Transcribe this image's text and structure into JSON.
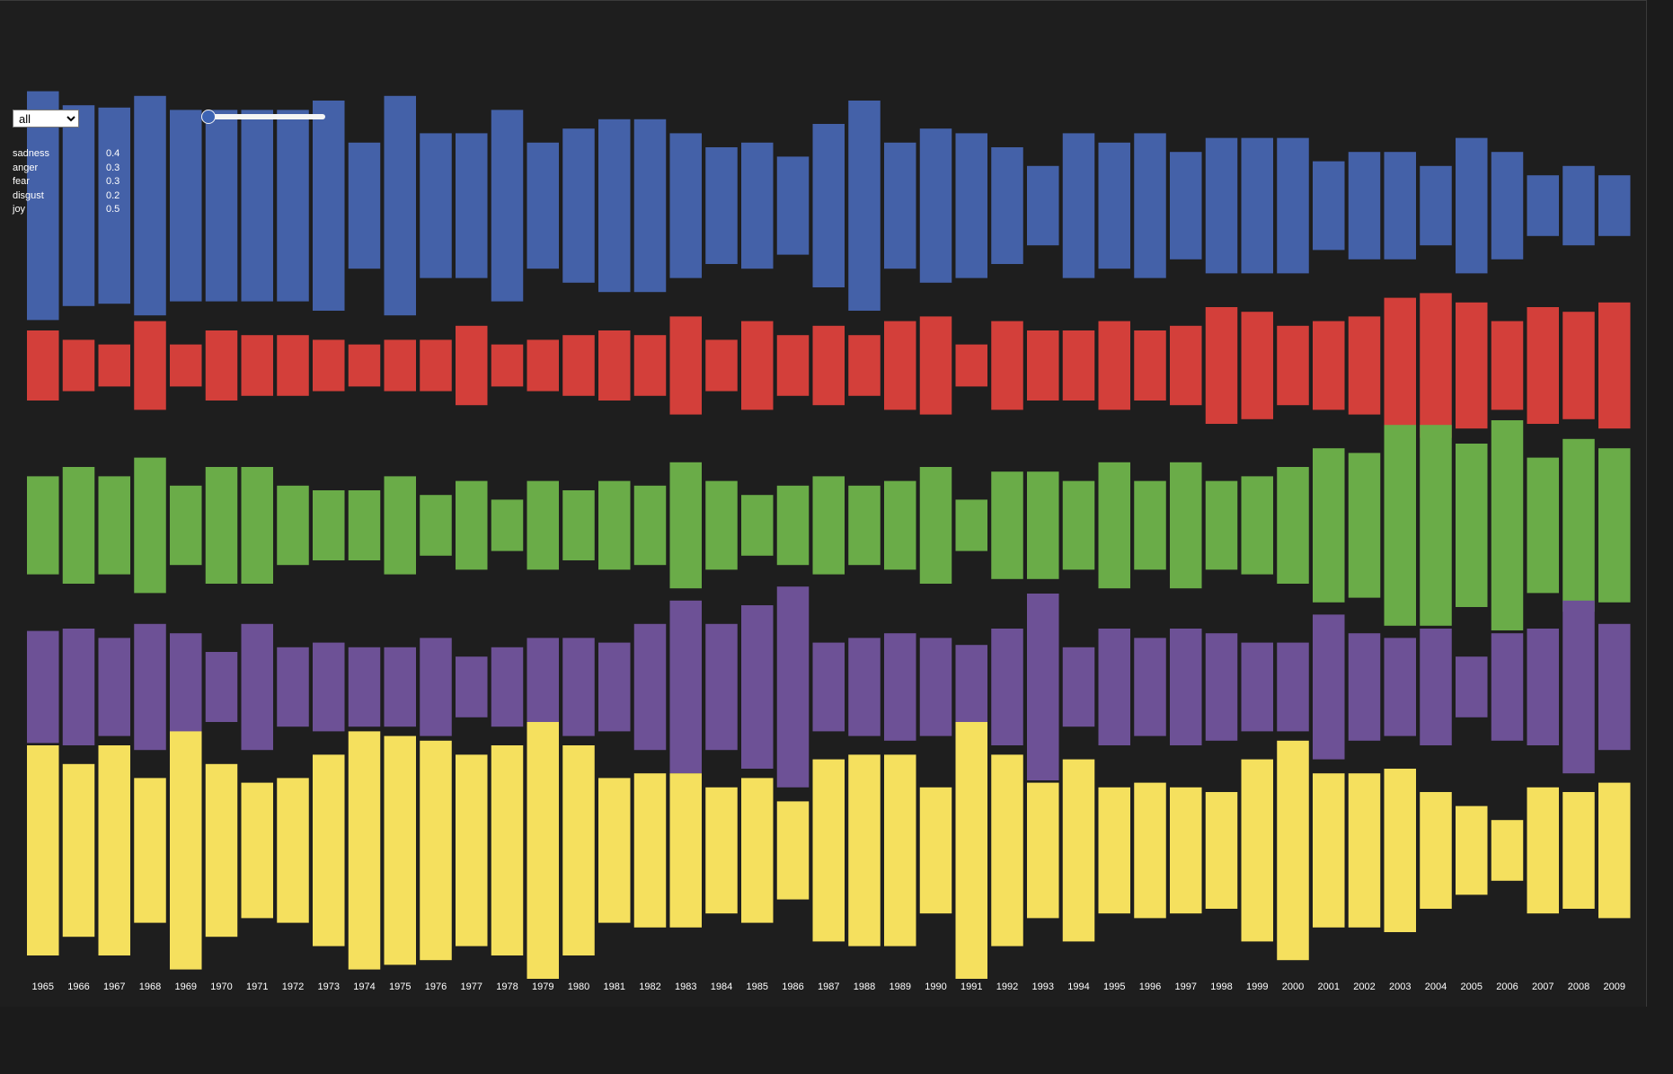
{
  "controls": {
    "mode_value": "all",
    "mode_options": [
      "all"
    ]
  },
  "slider": {
    "value": 0
  },
  "legend": [
    {
      "name": "sadness",
      "value": "0.4"
    },
    {
      "name": "anger",
      "value": "0.3"
    },
    {
      "name": "fear",
      "value": "0.3"
    },
    {
      "name": "disgust",
      "value": "0.2"
    },
    {
      "name": "joy",
      "value": "0.5"
    }
  ],
  "chart_data": {
    "type": "bar",
    "categories": [
      "1965",
      "1966",
      "1967",
      "1968",
      "1969",
      "1970",
      "1971",
      "1972",
      "1973",
      "1974",
      "1975",
      "1976",
      "1977",
      "1978",
      "1979",
      "1980",
      "1981",
      "1982",
      "1983",
      "1984",
      "1985",
      "1986",
      "1987",
      "1988",
      "1989",
      "1990",
      "1991",
      "1992",
      "1993",
      "1994",
      "1995",
      "1996",
      "1997",
      "1998",
      "1999",
      "2000",
      "2001",
      "2002",
      "2003",
      "2004",
      "2005",
      "2006",
      "2007",
      "2008",
      "2009"
    ],
    "series": [
      {
        "key": "sadness",
        "color": "#4461a8",
        "values": [
          49,
          43,
          42,
          47,
          41,
          41,
          41,
          41,
          45,
          27,
          47,
          31,
          31,
          41,
          27,
          33,
          37,
          37,
          31,
          25,
          27,
          21,
          35,
          45,
          27,
          33,
          31,
          25,
          17,
          31,
          27,
          31,
          23,
          29,
          29,
          29,
          19,
          23,
          23,
          17,
          29,
          23,
          13,
          17,
          13
        ]
      },
      {
        "key": "anger",
        "color": "#d33f3a",
        "values": [
          15,
          11,
          9,
          19,
          9,
          15,
          13,
          13,
          11,
          9,
          11,
          11,
          17,
          9,
          11,
          13,
          15,
          13,
          21,
          11,
          19,
          13,
          17,
          13,
          19,
          21,
          9,
          19,
          15,
          15,
          19,
          15,
          17,
          25,
          23,
          17,
          19,
          21,
          29,
          31,
          27,
          19,
          25,
          23,
          27
        ]
      },
      {
        "key": "fear",
        "color": "#6aac48",
        "values": [
          21,
          25,
          21,
          29,
          17,
          25,
          25,
          17,
          15,
          15,
          21,
          13,
          19,
          11,
          19,
          15,
          19,
          17,
          27,
          19,
          13,
          17,
          21,
          17,
          19,
          25,
          11,
          23,
          23,
          19,
          27,
          19,
          27,
          19,
          21,
          25,
          33,
          31,
          43,
          43,
          35,
          45,
          29,
          37,
          33
        ]
      },
      {
        "key": "disgust",
        "color": "#6d5196",
        "values": [
          24,
          25,
          21,
          27,
          23,
          15,
          27,
          17,
          19,
          17,
          17,
          21,
          13,
          17,
          21,
          21,
          19,
          27,
          37,
          27,
          35,
          43,
          19,
          21,
          23,
          21,
          18,
          25,
          40,
          17,
          25,
          21,
          25,
          23,
          19,
          19,
          31,
          23,
          21,
          25,
          13,
          23,
          25,
          37,
          27
        ]
      },
      {
        "key": "joy",
        "color": "#f5e05e",
        "values": [
          45,
          37,
          45,
          31,
          51,
          37,
          29,
          31,
          41,
          51,
          49,
          47,
          41,
          45,
          55,
          45,
          31,
          33,
          33,
          27,
          31,
          21,
          39,
          41,
          41,
          27,
          55,
          41,
          29,
          39,
          27,
          29,
          27,
          25,
          39,
          47,
          33,
          33,
          35,
          25,
          19,
          13,
          27,
          25,
          29
        ]
      }
    ]
  }
}
